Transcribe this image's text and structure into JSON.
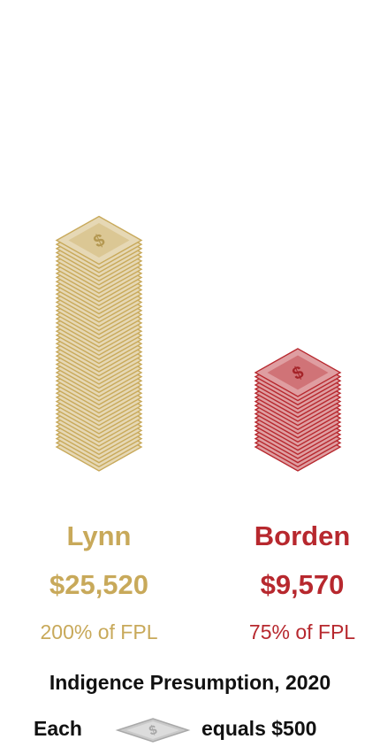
{
  "chart_data": {
    "type": "bar",
    "categories": [
      "Lynn",
      "Borden"
    ],
    "values": [
      25520,
      9570
    ],
    "value_labels": [
      "$25,520",
      "$9,570"
    ],
    "fpl_labels": [
      "200% of FPL",
      "75% of FPL"
    ],
    "colors": [
      "#c8a95a",
      "#b7282e"
    ],
    "unit_value": 500,
    "title": "Indigence Presumption, 2020",
    "legend": {
      "prefix": "Each",
      "suffix": "equals $500",
      "icon": "dollar-bill-icon"
    }
  }
}
